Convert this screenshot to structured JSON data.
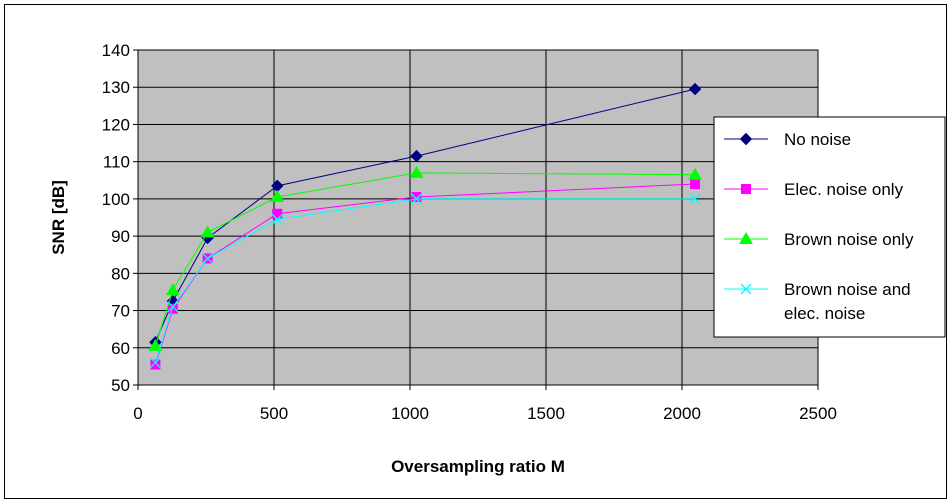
{
  "chart_data": {
    "type": "line",
    "xlabel": "Oversampling ratio M",
    "ylabel": "SNR [dB]",
    "xlim": [
      0,
      2500
    ],
    "ylim": [
      50,
      140
    ],
    "xticks": [
      0,
      500,
      1000,
      1500,
      2000,
      2500
    ],
    "yticks": [
      50,
      60,
      70,
      80,
      90,
      100,
      110,
      120,
      130,
      140
    ],
    "grid": true,
    "plot_background": "#c0c0c0",
    "legend_position": "right",
    "series": [
      {
        "name": "No noise",
        "color": "#000080",
        "marker": "diamond",
        "x": [
          64,
          128,
          256,
          512,
          1024,
          2048
        ],
        "y": [
          61.5,
          72.5,
          89.5,
          103.5,
          111.5,
          129.5
        ]
      },
      {
        "name": "Elec. noise only",
        "color": "#ff00ff",
        "marker": "square",
        "x": [
          64,
          128,
          256,
          512,
          1024,
          2048
        ],
        "y": [
          55.5,
          70.5,
          84,
          96,
          100.5,
          104
        ]
      },
      {
        "name": "Brown noise only",
        "color": "#00ff00",
        "marker": "triangle",
        "x": [
          64,
          128,
          256,
          512,
          1024,
          2048
        ],
        "y": [
          60.5,
          75.5,
          91,
          100.5,
          107,
          106.5
        ]
      },
      {
        "name": "Brown noise and elec. noise",
        "color": "#00ffff",
        "marker": "x",
        "x": [
          64,
          128,
          256,
          512,
          1024,
          2048
        ],
        "y": [
          56,
          71,
          84,
          94.5,
          100,
          100
        ]
      }
    ]
  },
  "legend": {
    "items": [
      {
        "lines": [
          "No noise"
        ]
      },
      {
        "lines": [
          "Elec. noise only"
        ]
      },
      {
        "lines": [
          "Brown noise only"
        ]
      },
      {
        "lines": [
          "Brown noise and",
          "elec. noise"
        ]
      }
    ]
  }
}
